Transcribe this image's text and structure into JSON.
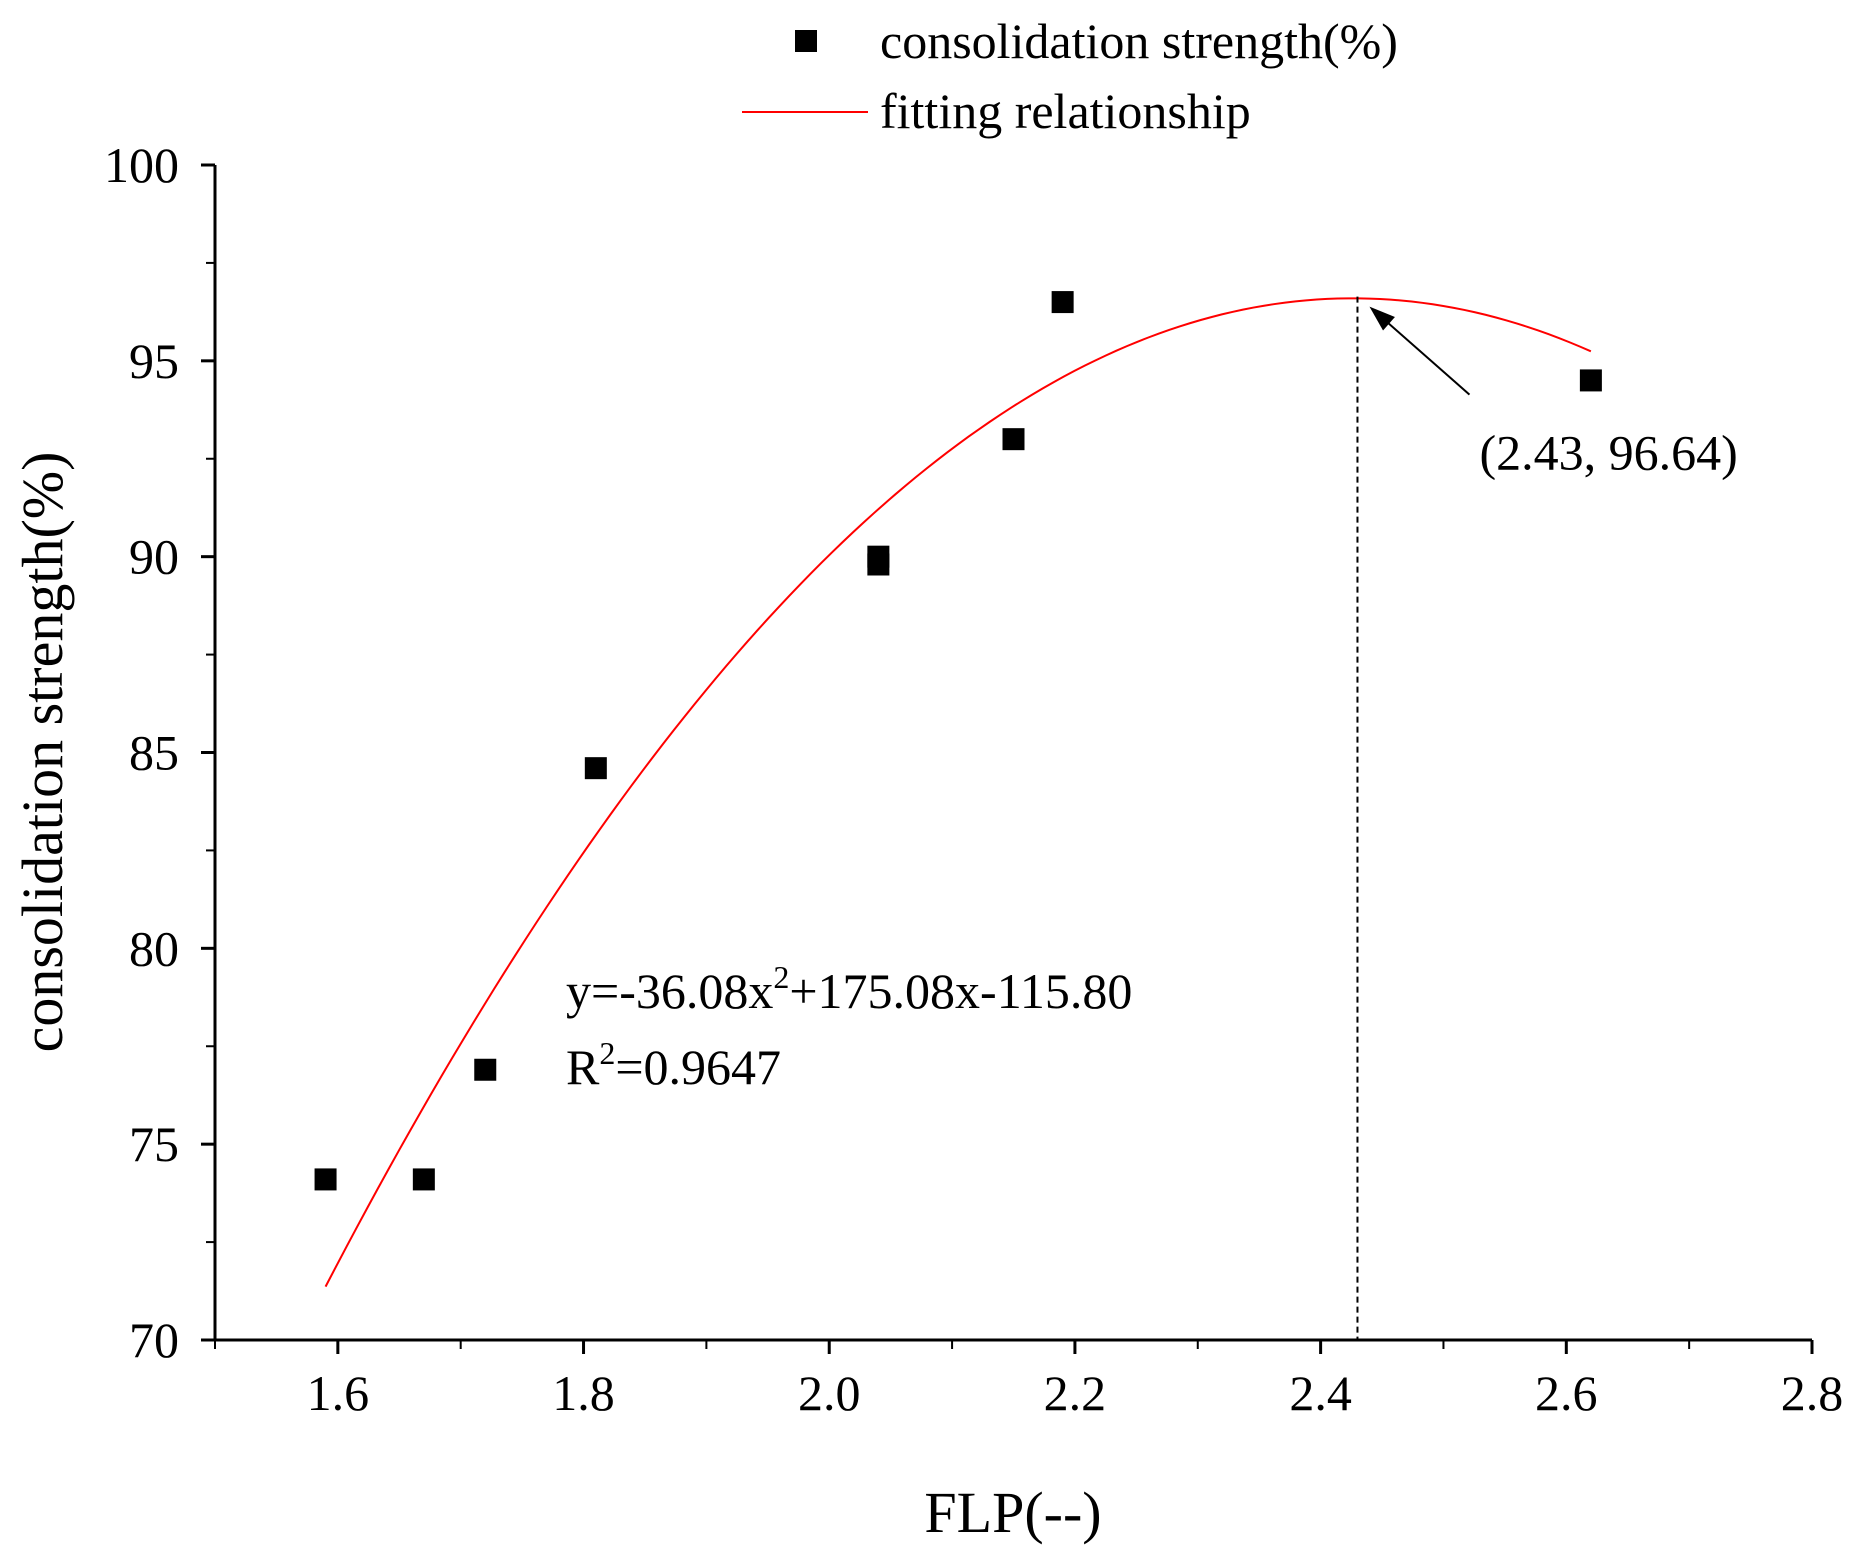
{
  "chart_data": {
    "type": "scatter",
    "xlabel": "FLP(--)",
    "ylabel": "consolidation strength(%)",
    "xlim": [
      1.5,
      2.8
    ],
    "ylim": [
      70,
      100
    ],
    "xticks": [
      1.6,
      1.8,
      2.0,
      2.2,
      2.4,
      2.6,
      2.8
    ],
    "xtick_labels": [
      "1.6",
      "1.8",
      "2.0",
      "2.2",
      "2.4",
      "2.6",
      "2.8"
    ],
    "yticks": [
      70,
      75,
      80,
      85,
      90,
      95,
      100
    ],
    "ytick_labels": [
      "70",
      "75",
      "80",
      "85",
      "90",
      "95",
      "100"
    ],
    "legend": {
      "position": "top",
      "scatter_label": "consolidation strength(%)",
      "fit_label": "fitting relationship"
    },
    "series": [
      {
        "name": "consolidation strength(%)",
        "kind": "scatter",
        "marker": "square",
        "color": "#000000",
        "x": [
          1.59,
          1.67,
          1.72,
          1.81,
          2.04,
          2.04,
          2.15,
          2.19,
          2.62
        ],
        "y": [
          74.1,
          74.1,
          76.9,
          84.6,
          90.0,
          89.8,
          93.0,
          96.5,
          94.5
        ]
      },
      {
        "name": "fitting relationship",
        "kind": "line",
        "color": "#ff0000",
        "coefficients": {
          "a": -36.08,
          "b": 175.08,
          "c": -115.8
        },
        "x_range": [
          1.59,
          2.62
        ]
      }
    ],
    "annotations": {
      "equation_prefix": "y=-36.08x",
      "equation_exp": "2",
      "equation_suffix": "+175.08x-115.80",
      "r2_prefix": "R",
      "r2_exp": "2",
      "r2_suffix": "=0.9647",
      "peak_label": "(2.43, 96.64)",
      "peak_point": {
        "x": 2.43,
        "y": 96.64
      }
    }
  }
}
